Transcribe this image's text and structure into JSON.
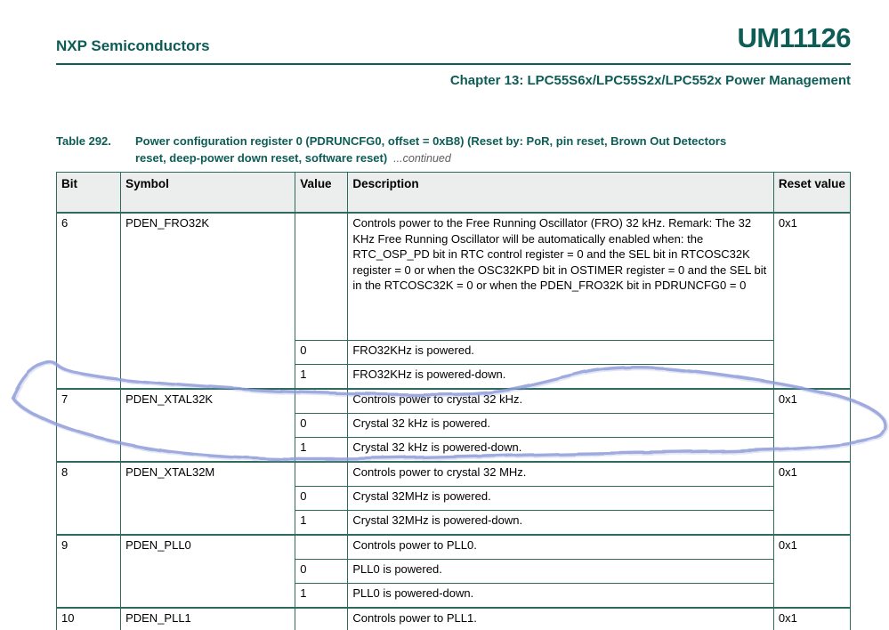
{
  "header": {
    "vendor": "NXP Semiconductors",
    "doc_id": "UM11126",
    "chapter": "Chapter 13: LPC55S6x/LPC55S2x/LPC552x Power Management"
  },
  "table": {
    "caption_label": "Table 292.",
    "caption_title": "Power configuration register 0 (PDRUNCFG0, offset = 0xB8) (Reset by: PoR, pin reset, Brown Out Detectors reset, deep-power down reset, software reset)",
    "caption_continued": "...continued",
    "columns": [
      "Bit",
      "Symbol",
      "Value",
      "Description",
      "Reset value"
    ],
    "groups": [
      {
        "bit": "6",
        "symbol": "PDEN_FRO32K",
        "reset_value": "0x1",
        "description": "Controls power to the Free Running Oscillator (FRO) 32 kHz. Remark: The 32 KHz Free Running Oscillator will be automatically enabled when: the RTC_OSP_PD bit in RTC control register = 0 and the SEL bit in RTCOSC32K register = 0 or when the OSC32KPD bit in OSTIMER register = 0 and the SEL bit in the RTCOSC32K = 0 or when the PDEN_FRO32K bit in PDRUNCFG0 = 0",
        "values": [
          {
            "value": "0",
            "description": "FRO32KHz is powered."
          },
          {
            "value": "1",
            "description": "FRO32KHz is powered-down."
          }
        ]
      },
      {
        "bit": "7",
        "symbol": "PDEN_XTAL32K",
        "reset_value": "0x1",
        "description": "Controls power to crystal 32 kHz.",
        "values": [
          {
            "value": "0",
            "description": "Crystal 32 kHz is powered."
          },
          {
            "value": "1",
            "description": "Crystal 32 kHz is powered-down."
          }
        ]
      },
      {
        "bit": "8",
        "symbol": "PDEN_XTAL32M",
        "reset_value": "0x1",
        "description": "Controls power to crystal 32 MHz.",
        "values": [
          {
            "value": "0",
            "description": "Crystal 32MHz is powered."
          },
          {
            "value": "1",
            "description": "Crystal 32MHz is powered-down."
          }
        ]
      },
      {
        "bit": "9",
        "symbol": "PDEN_PLL0",
        "reset_value": "0x1",
        "description": "Controls power to PLL0.",
        "values": [
          {
            "value": "0",
            "description": "PLL0 is powered."
          },
          {
            "value": "1",
            "description": "PLL0 is powered-down."
          }
        ]
      },
      {
        "bit": "10",
        "symbol": "PDEN_PLL1",
        "reset_value": "0x1",
        "description": "Controls power to PLL1.",
        "values": []
      }
    ]
  },
  "annotation": {
    "type": "freehand-ellipse",
    "target": "row bit 7 PDEN_XTAL32K",
    "color": "#8e9cd9"
  },
  "colors": {
    "heading_teal": "#0d5c55",
    "table_border": "#2f6a5f",
    "header_row_bg": "#ebeeec",
    "continued_gray": "#5d5d5d",
    "annotation_blue": "#8e9cd9"
  }
}
